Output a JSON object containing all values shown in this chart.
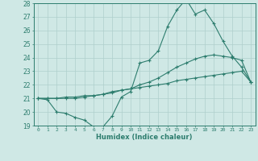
{
  "xlabel": "Humidex (Indice chaleur)",
  "x_values": [
    0,
    1,
    2,
    3,
    4,
    5,
    6,
    7,
    8,
    9,
    10,
    11,
    12,
    13,
    14,
    15,
    16,
    17,
    18,
    19,
    20,
    21,
    22,
    23
  ],
  "line1_y": [
    21.0,
    20.9,
    20.0,
    19.9,
    19.6,
    19.4,
    18.9,
    18.9,
    19.7,
    21.1,
    21.5,
    23.6,
    23.8,
    24.5,
    26.3,
    27.5,
    28.3,
    27.2,
    27.5,
    26.5,
    25.2,
    24.1,
    23.3,
    22.2
  ],
  "line2_y": [
    21.0,
    21.0,
    21.0,
    21.0,
    21.0,
    21.1,
    21.2,
    21.3,
    21.5,
    21.6,
    21.7,
    21.8,
    21.9,
    22.0,
    22.1,
    22.3,
    22.4,
    22.5,
    22.6,
    22.7,
    22.8,
    22.9,
    23.0,
    22.2
  ],
  "line3_y": [
    21.0,
    21.0,
    21.0,
    21.1,
    21.1,
    21.2,
    21.2,
    21.3,
    21.4,
    21.6,
    21.7,
    22.0,
    22.2,
    22.5,
    22.9,
    23.3,
    23.6,
    23.9,
    24.1,
    24.2,
    24.1,
    24.0,
    23.8,
    22.2
  ],
  "line_color": "#2d7d6e",
  "bg_color": "#cfe8e5",
  "grid_color": "#aecfcc",
  "ylim": [
    19,
    28
  ],
  "yticks": [
    19,
    20,
    21,
    22,
    23,
    24,
    25,
    26,
    27,
    28
  ],
  "xticks": [
    0,
    1,
    2,
    3,
    4,
    5,
    6,
    7,
    8,
    9,
    10,
    11,
    12,
    13,
    14,
    15,
    16,
    17,
    18,
    19,
    20,
    21,
    22,
    23
  ]
}
